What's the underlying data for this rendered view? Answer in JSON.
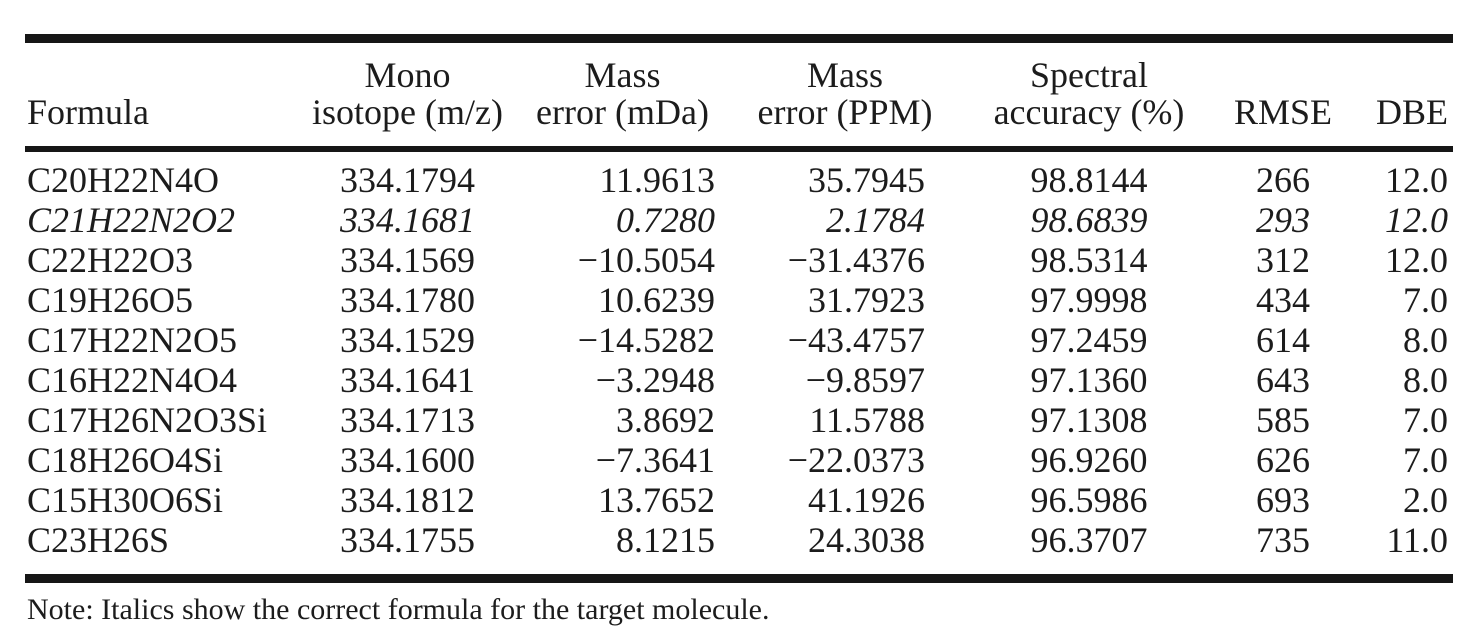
{
  "table": {
    "columns": [
      {
        "id": "formula",
        "label": "Formula"
      },
      {
        "id": "mono",
        "label": "Mono\nisotope (m/z)"
      },
      {
        "id": "mda",
        "label": "Mass\nerror (mDa)"
      },
      {
        "id": "ppm",
        "label": "Mass\nerror (PPM)"
      },
      {
        "id": "spectral",
        "label": "Spectral\naccuracy (%)"
      },
      {
        "id": "rmse",
        "label": "RMSE"
      },
      {
        "id": "dbe",
        "label": "DBE"
      }
    ],
    "rows": [
      {
        "italic": false,
        "cells": [
          "C20H22N4O",
          "334.1794",
          "11.9613",
          "35.7945",
          "98.8144",
          "266",
          "12.0"
        ]
      },
      {
        "italic": true,
        "cells": [
          "C21H22N2O2",
          "334.1681",
          "0.7280",
          "2.1784",
          "98.6839",
          "293",
          "12.0"
        ]
      },
      {
        "italic": false,
        "cells": [
          "C22H22O3",
          "334.1569",
          "−10.5054",
          "−31.4376",
          "98.5314",
          "312",
          "12.0"
        ]
      },
      {
        "italic": false,
        "cells": [
          "C19H26O5",
          "334.1780",
          "10.6239",
          "31.7923",
          "97.9998",
          "434",
          "7.0"
        ]
      },
      {
        "italic": false,
        "cells": [
          "C17H22N2O5",
          "334.1529",
          "−14.5282",
          "−43.4757",
          "97.2459",
          "614",
          "8.0"
        ]
      },
      {
        "italic": false,
        "cells": [
          "C16H22N4O4",
          "334.1641",
          "−3.2948",
          "−9.8597",
          "97.1360",
          "643",
          "8.0"
        ]
      },
      {
        "italic": false,
        "cells": [
          "C17H26N2O3Si",
          "334.1713",
          "3.8692",
          "11.5788",
          "97.1308",
          "585",
          "7.0"
        ]
      },
      {
        "italic": false,
        "cells": [
          "C18H26O4Si",
          "334.1600",
          "−7.3641",
          "−22.0373",
          "96.9260",
          "626",
          "7.0"
        ]
      },
      {
        "italic": false,
        "cells": [
          "C15H30O6Si",
          "334.1812",
          "13.7652",
          "41.1926",
          "96.5986",
          "693",
          "2.0"
        ]
      },
      {
        "italic": false,
        "cells": [
          "C23H26S",
          "334.1755",
          "8.1215",
          "24.3038",
          "96.3707",
          "735",
          "11.0"
        ]
      }
    ],
    "note": "Note: Italics show the correct formula for the target molecule."
  },
  "colors": {
    "text": "#1c1c1c",
    "rule": "#161616",
    "background": "#ffffff"
  }
}
